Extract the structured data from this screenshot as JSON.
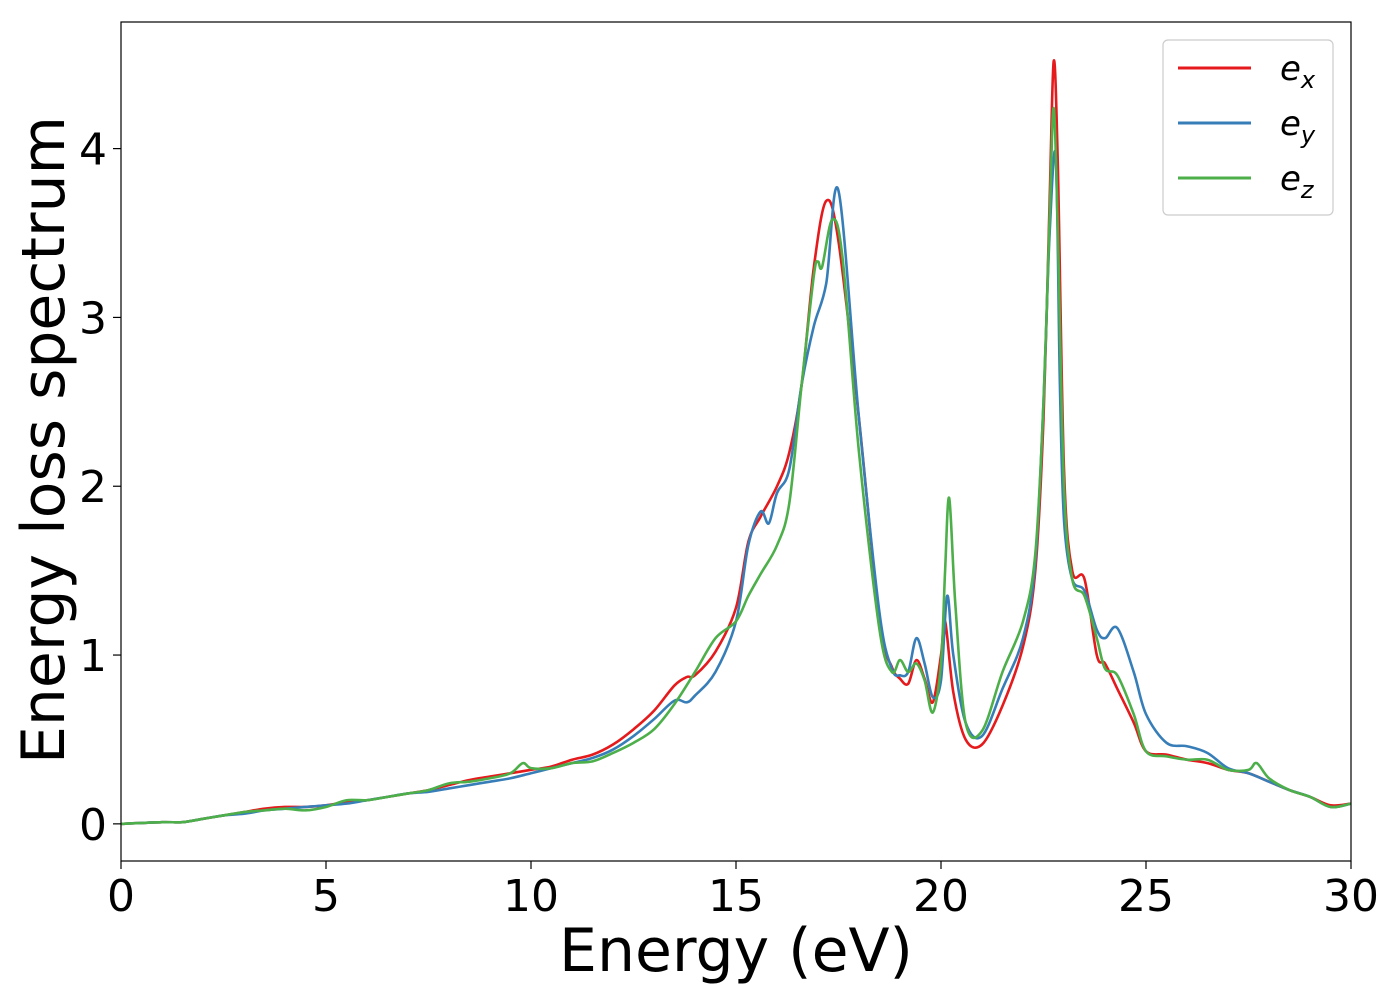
{
  "chart_data": {
    "type": "line",
    "xlabel": "Energy (eV)",
    "ylabel": "Energy loss spectrum",
    "xlim": [
      0,
      30
    ],
    "ylim": [
      -0.22,
      4.75
    ],
    "xticks": [
      0,
      5,
      10,
      15,
      20,
      25,
      30
    ],
    "yticks": [
      0,
      1,
      2,
      3,
      4
    ],
    "legend_position": "top-right",
    "grid": false,
    "series": [
      {
        "name": "e_x",
        "legend_base": "e",
        "legend_sub": "x",
        "color": "#e41a1c",
        "x": [
          0,
          1,
          1.5,
          2,
          2.5,
          3,
          3.5,
          4,
          4.5,
          5,
          5.5,
          6,
          6.5,
          7,
          7.5,
          8,
          8.5,
          9,
          9.5,
          10,
          10.5,
          11,
          11.5,
          12,
          12.5,
          13,
          13.5,
          13.8,
          14,
          14.5,
          15,
          15.3,
          15.6,
          16,
          16.3,
          16.6,
          16.9,
          17.2,
          17.5,
          18,
          18.5,
          18.8,
          19,
          19.2,
          19.4,
          19.6,
          19.8,
          20,
          20.1,
          20.3,
          20.6,
          21,
          21.5,
          22,
          22.3,
          22.5,
          22.65,
          22.75,
          22.85,
          23,
          23.2,
          23.5,
          23.8,
          24,
          24.3,
          24.7,
          25,
          25.5,
          26,
          26.5,
          27,
          27.5,
          28,
          28.5,
          29,
          29.5,
          30
        ],
        "y": [
          0,
          0.01,
          0.01,
          0.03,
          0.05,
          0.07,
          0.09,
          0.1,
          0.1,
          0.11,
          0.13,
          0.14,
          0.16,
          0.18,
          0.2,
          0.23,
          0.26,
          0.28,
          0.3,
          0.32,
          0.34,
          0.38,
          0.41,
          0.47,
          0.56,
          0.67,
          0.82,
          0.87,
          0.88,
          1.02,
          1.28,
          1.67,
          1.82,
          2.0,
          2.2,
          2.6,
          3.3,
          3.69,
          3.45,
          2.4,
          1.2,
          0.93,
          0.86,
          0.83,
          0.97,
          0.86,
          0.72,
          1.0,
          1.2,
          0.78,
          0.5,
          0.47,
          0.7,
          1.05,
          1.5,
          2.4,
          3.7,
          4.52,
          3.9,
          2.1,
          1.5,
          1.45,
          1.0,
          0.95,
          0.8,
          0.6,
          0.43,
          0.41,
          0.38,
          0.36,
          0.32,
          0.3,
          0.25,
          0.2,
          0.16,
          0.11,
          0.12
        ]
      },
      {
        "name": "e_y",
        "legend_base": "e",
        "legend_sub": "y",
        "color": "#377eb8",
        "x": [
          0,
          1,
          1.5,
          2,
          2.5,
          3,
          3.5,
          4,
          4.5,
          5,
          5.5,
          6,
          6.5,
          7,
          7.5,
          8,
          8.5,
          9,
          9.5,
          10,
          10.5,
          11,
          11.5,
          12,
          12.5,
          13,
          13.5,
          13.8,
          14,
          14.5,
          15,
          15.3,
          15.6,
          15.8,
          16,
          16.3,
          16.6,
          16.9,
          17.2,
          17.5,
          18,
          18.5,
          18.8,
          19,
          19.2,
          19.4,
          19.6,
          19.8,
          20,
          20.15,
          20.3,
          20.6,
          21,
          21.5,
          22,
          22.3,
          22.5,
          22.65,
          22.8,
          22.9,
          23,
          23.2,
          23.5,
          23.8,
          24,
          24.3,
          24.7,
          25,
          25.5,
          26,
          26.5,
          27,
          27.5,
          28,
          28.5,
          29,
          29.5,
          30
        ],
        "y": [
          0,
          0.01,
          0.01,
          0.03,
          0.05,
          0.06,
          0.08,
          0.09,
          0.1,
          0.11,
          0.12,
          0.14,
          0.16,
          0.18,
          0.19,
          0.21,
          0.23,
          0.25,
          0.27,
          0.3,
          0.33,
          0.36,
          0.39,
          0.44,
          0.52,
          0.62,
          0.73,
          0.72,
          0.76,
          0.9,
          1.2,
          1.65,
          1.85,
          1.78,
          1.96,
          2.1,
          2.6,
          2.95,
          3.2,
          3.75,
          2.4,
          1.25,
          0.92,
          0.88,
          0.9,
          1.1,
          0.95,
          0.75,
          0.85,
          1.35,
          1.0,
          0.6,
          0.52,
          0.8,
          1.1,
          1.55,
          2.5,
          3.5,
          3.95,
          2.6,
          1.8,
          1.45,
          1.38,
          1.15,
          1.1,
          1.16,
          0.9,
          0.65,
          0.48,
          0.46,
          0.42,
          0.33,
          0.3,
          0.25,
          0.2,
          0.16,
          0.1,
          0.12
        ]
      },
      {
        "name": "e_z",
        "legend_base": "e",
        "legend_sub": "z",
        "color": "#4daf4a",
        "x": [
          0,
          1,
          1.5,
          2,
          2.5,
          3,
          3.5,
          4,
          4.5,
          5,
          5.5,
          6,
          6.5,
          7,
          7.5,
          8,
          8.5,
          9,
          9.5,
          9.8,
          10,
          10.5,
          11,
          11.5,
          12,
          12.5,
          13,
          13.5,
          14,
          14.5,
          15,
          15.3,
          15.6,
          16,
          16.3,
          16.6,
          16.9,
          17.0,
          17.1,
          17.35,
          17.6,
          18,
          18.5,
          18.8,
          19,
          19.2,
          19.4,
          19.6,
          19.8,
          20,
          20.1,
          20.2,
          20.35,
          20.6,
          21,
          21.5,
          22,
          22.3,
          22.5,
          22.65,
          22.75,
          22.85,
          23,
          23.2,
          23.5,
          23.8,
          24,
          24.3,
          24.7,
          25,
          25.5,
          26,
          26.5,
          27,
          27.5,
          27.7,
          28,
          28.5,
          29,
          29.5,
          30
        ],
        "y": [
          0,
          0.01,
          0.01,
          0.03,
          0.05,
          0.07,
          0.08,
          0.09,
          0.08,
          0.1,
          0.14,
          0.14,
          0.16,
          0.18,
          0.2,
          0.24,
          0.25,
          0.27,
          0.3,
          0.36,
          0.33,
          0.33,
          0.36,
          0.37,
          0.42,
          0.48,
          0.56,
          0.71,
          0.9,
          1.1,
          1.2,
          1.35,
          1.48,
          1.65,
          1.9,
          2.6,
          3.25,
          3.33,
          3.3,
          3.58,
          3.35,
          2.2,
          1.15,
          0.9,
          0.97,
          0.9,
          0.95,
          0.85,
          0.66,
          0.95,
          1.5,
          1.93,
          1.3,
          0.6,
          0.55,
          0.9,
          1.2,
          1.6,
          2.5,
          3.6,
          4.24,
          3.5,
          2.0,
          1.45,
          1.35,
          1.1,
          0.92,
          0.88,
          0.65,
          0.43,
          0.4,
          0.38,
          0.38,
          0.32,
          0.32,
          0.36,
          0.27,
          0.2,
          0.16,
          0.1,
          0.12
        ]
      }
    ]
  }
}
